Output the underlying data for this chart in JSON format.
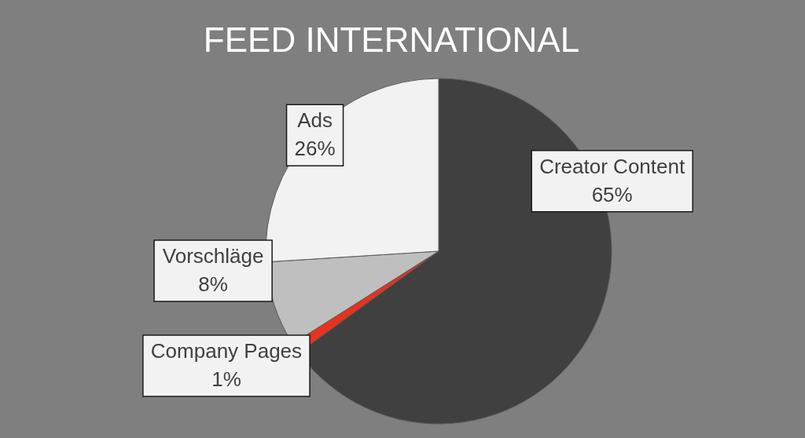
{
  "chart_data": {
    "type": "pie",
    "title": "FEED INTERNATIONAL",
    "categories": [
      "Creator Content",
      "Company Pages",
      "Vorschläge",
      "Ads"
    ],
    "values": [
      65,
      1,
      8,
      26
    ],
    "colors": [
      "#404040",
      "#e8321e",
      "#bfbfbf",
      "#f2f2f2"
    ],
    "value_labels": [
      "65%",
      "1%",
      "8%",
      "26%"
    ]
  }
}
